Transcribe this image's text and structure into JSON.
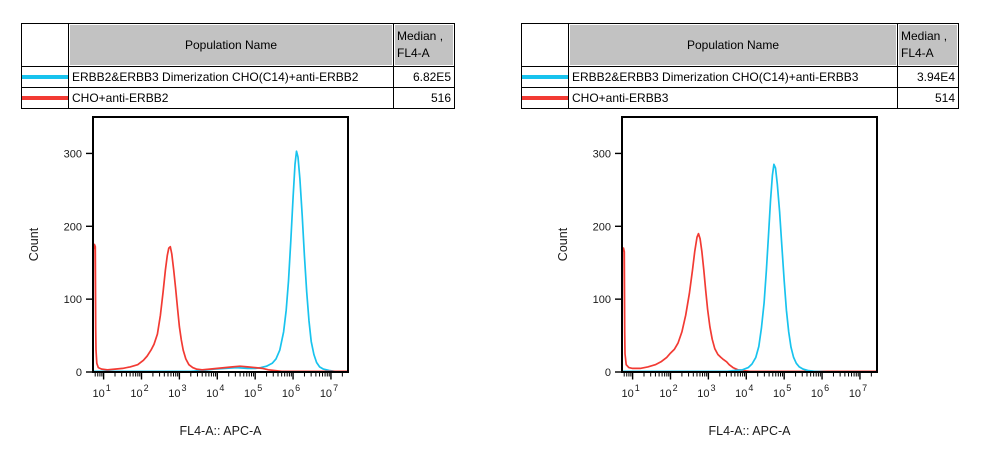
{
  "panels": [
    {
      "table": {
        "header": {
          "population": "Population Name",
          "median_line1": "Median ,",
          "median_line2": "FL4-A"
        },
        "rows": [
          {
            "swatch_color": "#18c3ee",
            "name": "ERBB2&ERBB3 Dimerization CHO(C14)+anti-ERBB2",
            "median": "6.82E5"
          },
          {
            "swatch_color": "#f23a33",
            "name": "CHO+anti-ERBB2",
            "median": "516"
          }
        ]
      }
    },
    {
      "table": {
        "header": {
          "population": "Population Name",
          "median_line1": "Median ,",
          "median_line2": "FL4-A"
        },
        "rows": [
          {
            "swatch_color": "#18c3ee",
            "name": "ERBB2&ERBB3 Dimerization CHO(C14)+anti-ERBB3",
            "median": "3.94E4"
          },
          {
            "swatch_color": "#f23a33",
            "name": "CHO+anti-ERBB3",
            "median": "514"
          }
        ]
      }
    }
  ],
  "chart_data": [
    {
      "type": "line",
      "title": "",
      "xlabel": "FL4-A:: APC-A",
      "ylabel": "Count",
      "x_scale": "log10",
      "xlim_log": [
        0.72,
        7.45
      ],
      "ylim": [
        0,
        350
      ],
      "yticks": [
        0,
        100,
        200,
        300
      ],
      "xtick_decades": [
        1,
        2,
        3,
        4,
        5,
        6,
        7
      ],
      "grid": false,
      "legend_position": "table-above",
      "series": [
        {
          "name": "ERBB2&ERBB3 Dimerization CHO(C14)+anti-ERBB2",
          "color": "#18c3ee",
          "median_fl4a": "6.82E5",
          "points": [
            [
              0.72,
              1
            ],
            [
              1.5,
              1
            ],
            [
              2.5,
              1
            ],
            [
              3.3,
              1
            ],
            [
              3.6,
              2
            ],
            [
              3.9,
              4
            ],
            [
              4.2,
              5
            ],
            [
              4.5,
              6
            ],
            [
              4.8,
              5
            ],
            [
              5.0,
              5
            ],
            [
              5.15,
              6
            ],
            [
              5.3,
              8
            ],
            [
              5.45,
              12
            ],
            [
              5.55,
              18
            ],
            [
              5.65,
              30
            ],
            [
              5.75,
              55
            ],
            [
              5.82,
              85
            ],
            [
              5.88,
              125
            ],
            [
              5.94,
              180
            ],
            [
              6.0,
              240
            ],
            [
              6.05,
              285
            ],
            [
              6.09,
              303
            ],
            [
              6.13,
              295
            ],
            [
              6.18,
              265
            ],
            [
              6.24,
              215
            ],
            [
              6.3,
              160
            ],
            [
              6.36,
              110
            ],
            [
              6.42,
              70
            ],
            [
              6.48,
              42
            ],
            [
              6.55,
              24
            ],
            [
              6.62,
              13
            ],
            [
              6.7,
              7
            ],
            [
              6.8,
              4
            ],
            [
              6.95,
              2
            ],
            [
              7.1,
              1
            ],
            [
              7.43,
              0
            ]
          ]
        },
        {
          "name": "CHO+anti-ERBB2",
          "color": "#f23a33",
          "median_fl4a": "516",
          "points": [
            [
              0.72,
              0
            ],
            [
              0.73,
              168
            ],
            [
              0.76,
              175
            ],
            [
              0.78,
              172
            ],
            [
              0.79,
              60
            ],
            [
              0.8,
              30
            ],
            [
              0.82,
              12
            ],
            [
              0.86,
              6
            ],
            [
              0.95,
              4
            ],
            [
              1.1,
              3
            ],
            [
              1.3,
              4
            ],
            [
              1.5,
              5
            ],
            [
              1.7,
              7
            ],
            [
              1.9,
              10
            ],
            [
              2.05,
              16
            ],
            [
              2.15,
              22
            ],
            [
              2.25,
              30
            ],
            [
              2.33,
              38
            ],
            [
              2.42,
              52
            ],
            [
              2.5,
              78
            ],
            [
              2.57,
              110
            ],
            [
              2.63,
              140
            ],
            [
              2.68,
              160
            ],
            [
              2.72,
              170
            ],
            [
              2.76,
              172
            ],
            [
              2.8,
              162
            ],
            [
              2.85,
              140
            ],
            [
              2.9,
              115
            ],
            [
              2.95,
              88
            ],
            [
              3.0,
              62
            ],
            [
              3.05,
              44
            ],
            [
              3.1,
              30
            ],
            [
              3.17,
              18
            ],
            [
              3.25,
              10
            ],
            [
              3.35,
              6
            ],
            [
              3.45,
              4
            ],
            [
              3.6,
              3
            ],
            [
              3.8,
              4
            ],
            [
              4.0,
              5
            ],
            [
              4.2,
              6
            ],
            [
              4.4,
              7
            ],
            [
              4.6,
              8
            ],
            [
              4.8,
              7
            ],
            [
              5.0,
              6
            ],
            [
              5.2,
              5
            ],
            [
              5.35,
              3
            ],
            [
              5.5,
              2
            ],
            [
              5.7,
              1
            ],
            [
              6.0,
              1
            ],
            [
              6.5,
              1
            ],
            [
              7.0,
              1
            ],
            [
              7.43,
              1
            ]
          ]
        }
      ]
    },
    {
      "type": "line",
      "title": "",
      "xlabel": "FL4-A:: APC-A",
      "ylabel": "Count",
      "x_scale": "log10",
      "xlim_log": [
        0.72,
        7.45
      ],
      "ylim": [
        0,
        350
      ],
      "yticks": [
        0,
        100,
        200,
        300
      ],
      "xtick_decades": [
        1,
        2,
        3,
        4,
        5,
        6,
        7
      ],
      "grid": false,
      "legend_position": "table-above",
      "series": [
        {
          "name": "CHO+anti-ERBB3",
          "color": "#f23a33",
          "median_fl4a": "514",
          "points": [
            [
              0.72,
              0
            ],
            [
              0.73,
              165
            ],
            [
              0.76,
              170
            ],
            [
              0.78,
              165
            ],
            [
              0.79,
              55
            ],
            [
              0.8,
              25
            ],
            [
              0.83,
              10
            ],
            [
              0.9,
              6
            ],
            [
              1.0,
              5
            ],
            [
              1.2,
              5
            ],
            [
              1.4,
              7
            ],
            [
              1.6,
              10
            ],
            [
              1.75,
              14
            ],
            [
              1.9,
              20
            ],
            [
              2.0,
              26
            ],
            [
              2.1,
              31
            ],
            [
              2.2,
              40
            ],
            [
              2.3,
              55
            ],
            [
              2.4,
              78
            ],
            [
              2.5,
              108
            ],
            [
              2.58,
              140
            ],
            [
              2.64,
              165
            ],
            [
              2.7,
              185
            ],
            [
              2.74,
              190
            ],
            [
              2.78,
              183
            ],
            [
              2.83,
              165
            ],
            [
              2.88,
              140
            ],
            [
              2.93,
              112
            ],
            [
              2.98,
              86
            ],
            [
              3.04,
              62
            ],
            [
              3.1,
              45
            ],
            [
              3.17,
              32
            ],
            [
              3.25,
              24
            ],
            [
              3.33,
              20
            ],
            [
              3.4,
              17
            ],
            [
              3.48,
              14
            ],
            [
              3.55,
              10
            ],
            [
              3.65,
              6
            ],
            [
              3.78,
              3
            ],
            [
              3.9,
              2
            ],
            [
              4.1,
              1
            ],
            [
              4.5,
              1
            ],
            [
              5.0,
              1
            ],
            [
              6.0,
              1
            ],
            [
              7.0,
              1
            ],
            [
              7.43,
              1
            ]
          ]
        },
        {
          "name": "ERBB2&ERBB3 Dimerization CHO(C14)+anti-ERBB3",
          "color": "#18c3ee",
          "median_fl4a": "3.94E4",
          "points": [
            [
              0.72,
              1
            ],
            [
              1.5,
              1
            ],
            [
              2.5,
              1
            ],
            [
              3.2,
              1
            ],
            [
              3.5,
              1
            ],
            [
              3.7,
              2
            ],
            [
              3.9,
              3
            ],
            [
              4.05,
              6
            ],
            [
              4.15,
              11
            ],
            [
              4.25,
              20
            ],
            [
              4.33,
              35
            ],
            [
              4.4,
              60
            ],
            [
              4.47,
              95
            ],
            [
              4.53,
              140
            ],
            [
              4.59,
              190
            ],
            [
              4.64,
              235
            ],
            [
              4.69,
              270
            ],
            [
              4.73,
              285
            ],
            [
              4.77,
              280
            ],
            [
              4.82,
              258
            ],
            [
              4.88,
              220
            ],
            [
              4.94,
              172
            ],
            [
              5.0,
              125
            ],
            [
              5.06,
              85
            ],
            [
              5.12,
              55
            ],
            [
              5.18,
              34
            ],
            [
              5.25,
              20
            ],
            [
              5.32,
              12
            ],
            [
              5.4,
              7
            ],
            [
              5.5,
              4
            ],
            [
              5.62,
              2
            ],
            [
              5.8,
              1
            ],
            [
              6.2,
              0
            ],
            [
              7.43,
              0
            ]
          ]
        }
      ]
    }
  ]
}
